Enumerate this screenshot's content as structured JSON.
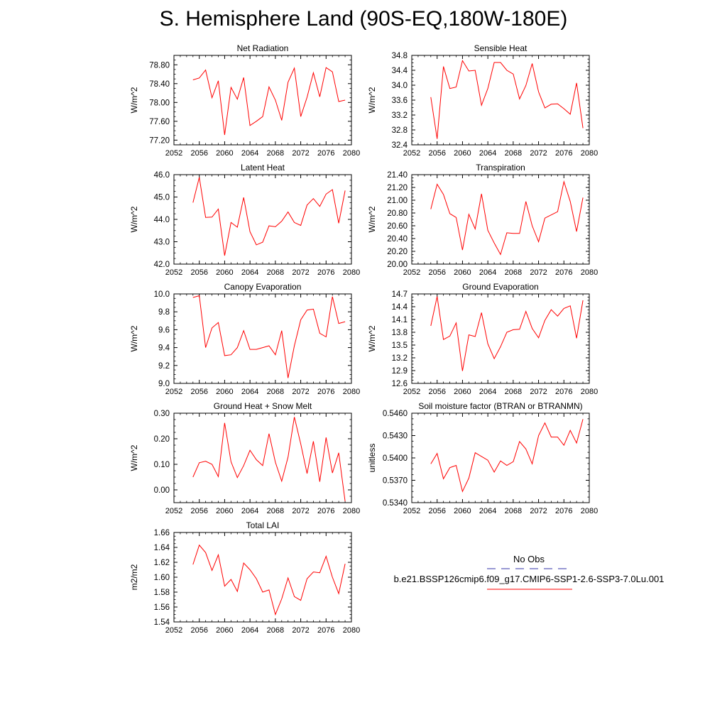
{
  "title": "S. Hemisphere Land (90S-EQ,180W-180E)",
  "legend": {
    "obs_label": "No Obs",
    "obs_color": "#3333aa",
    "case_label": "b.e21.BSSP126cmip6.f09_g17.CMIP6-SSP1-2.6-SSP3-7.0Lu.001",
    "case_color": "#ff0000"
  },
  "chart_data": [
    {
      "type": "line",
      "title": "Net Radiation",
      "ylabel": "W/m^2",
      "xlim": [
        2052,
        2080
      ],
      "ylim": [
        77.1,
        79.0
      ],
      "xticks": [
        "2052",
        "2056",
        "2060",
        "2064",
        "2068",
        "2072",
        "2076",
        "2080"
      ],
      "yticks": [
        "77.20",
        "77.60",
        "78.00",
        "78.40",
        "78.80"
      ],
      "x": [
        2055,
        2056,
        2057,
        2058,
        2059,
        2060,
        2061,
        2062,
        2063,
        2064,
        2065,
        2066,
        2067,
        2068,
        2069,
        2070,
        2071,
        2072,
        2073,
        2074,
        2075,
        2076,
        2077,
        2078,
        2079
      ],
      "series": [
        {
          "values": [
            78.48,
            78.52,
            78.69,
            78.1,
            78.46,
            77.31,
            78.32,
            78.07,
            78.53,
            77.51,
            77.6,
            77.7,
            78.33,
            78.05,
            77.62,
            78.43,
            78.73,
            77.7,
            78.11,
            78.63,
            78.12,
            78.74,
            78.65,
            78.02,
            78.05
          ],
          "color": "#ff0000"
        }
      ]
    },
    {
      "type": "line",
      "title": "Sensible Heat",
      "ylabel": "W/m^2",
      "xlim": [
        2052,
        2080
      ],
      "ylim": [
        32.4,
        34.8
      ],
      "xticks": [
        "2052",
        "2056",
        "2060",
        "2064",
        "2068",
        "2072",
        "2076",
        "2080"
      ],
      "yticks": [
        "32.4",
        "32.8",
        "33.2",
        "33.6",
        "34.0",
        "34.4",
        "34.8"
      ],
      "x": [
        2055,
        2056,
        2057,
        2058,
        2059,
        2060,
        2061,
        2062,
        2063,
        2064,
        2065,
        2066,
        2067,
        2068,
        2069,
        2070,
        2071,
        2072,
        2073,
        2074,
        2075,
        2076,
        2077,
        2078,
        2079
      ],
      "series": [
        {
          "values": [
            33.68,
            32.56,
            34.5,
            33.91,
            33.95,
            34.66,
            34.38,
            34.4,
            33.46,
            33.91,
            34.61,
            34.61,
            34.4,
            34.3,
            33.63,
            33.99,
            34.58,
            33.82,
            33.39,
            33.49,
            33.5,
            33.37,
            33.22,
            34.06,
            32.85
          ],
          "color": "#ff0000"
        }
      ]
    },
    {
      "type": "line",
      "title": "Latent Heat",
      "ylabel": "W/m^2",
      "xlim": [
        2052,
        2080
      ],
      "ylim": [
        42.0,
        46.0
      ],
      "xticks": [
        "2052",
        "2056",
        "2060",
        "2064",
        "2068",
        "2072",
        "2076",
        "2080"
      ],
      "yticks": [
        "42.0",
        "43.0",
        "44.0",
        "45.0",
        "46.0"
      ],
      "x": [
        2055,
        2056,
        2057,
        2058,
        2059,
        2060,
        2061,
        2062,
        2063,
        2064,
        2065,
        2066,
        2067,
        2068,
        2069,
        2070,
        2071,
        2072,
        2073,
        2074,
        2075,
        2076,
        2077,
        2078,
        2079
      ],
      "series": [
        {
          "values": [
            44.75,
            45.88,
            44.09,
            44.1,
            44.46,
            42.38,
            43.86,
            43.65,
            44.98,
            43.45,
            42.86,
            42.98,
            43.71,
            43.67,
            43.92,
            44.33,
            43.86,
            43.73,
            44.64,
            44.93,
            44.58,
            45.13,
            45.33,
            43.83,
            45.29
          ],
          "color": "#ff0000"
        }
      ]
    },
    {
      "type": "line",
      "title": "Transpiration",
      "ylabel": "W/m^2",
      "xlim": [
        2052,
        2080
      ],
      "ylim": [
        20.0,
        21.4
      ],
      "xticks": [
        "2052",
        "2056",
        "2060",
        "2064",
        "2068",
        "2072",
        "2076",
        "2080"
      ],
      "yticks": [
        "20.00",
        "20.20",
        "20.40",
        "20.60",
        "20.80",
        "21.00",
        "21.20",
        "21.40"
      ],
      "x": [
        2055,
        2056,
        2057,
        2058,
        2059,
        2060,
        2061,
        2062,
        2063,
        2064,
        2065,
        2066,
        2067,
        2068,
        2069,
        2070,
        2071,
        2072,
        2073,
        2074,
        2075,
        2076,
        2077,
        2078,
        2079
      ],
      "series": [
        {
          "values": [
            20.86,
            21.25,
            21.09,
            20.79,
            20.73,
            20.22,
            20.78,
            20.55,
            21.1,
            20.53,
            20.33,
            20.15,
            20.49,
            20.48,
            20.48,
            20.98,
            20.6,
            20.35,
            20.72,
            20.77,
            20.82,
            21.29,
            20.98,
            20.51,
            21.04
          ],
          "color": "#ff0000"
        }
      ]
    },
    {
      "type": "line",
      "title": "Canopy Evaporation",
      "ylabel": "W/m^2",
      "xlim": [
        2052,
        2080
      ],
      "ylim": [
        9.0,
        10.0
      ],
      "xticks": [
        "2052",
        "2056",
        "2060",
        "2064",
        "2068",
        "2072",
        "2076",
        "2080"
      ],
      "yticks": [
        "9.0",
        "9.2",
        "9.4",
        "9.6",
        "9.8",
        "10.0"
      ],
      "x": [
        2055,
        2056,
        2057,
        2058,
        2059,
        2060,
        2061,
        2062,
        2063,
        2064,
        2065,
        2066,
        2067,
        2068,
        2069,
        2070,
        2071,
        2072,
        2073,
        2074,
        2075,
        2076,
        2077,
        2078,
        2079
      ],
      "series": [
        {
          "values": [
            9.96,
            9.98,
            9.4,
            9.62,
            9.68,
            9.31,
            9.32,
            9.4,
            9.59,
            9.38,
            9.38,
            9.4,
            9.42,
            9.32,
            9.59,
            9.06,
            9.42,
            9.71,
            9.82,
            9.83,
            9.56,
            9.52,
            9.97,
            9.67,
            9.69
          ],
          "color": "#ff0000"
        }
      ]
    },
    {
      "type": "line",
      "title": "Ground Evaporation",
      "ylabel": "W/m^2",
      "xlim": [
        2052,
        2080
      ],
      "ylim": [
        12.6,
        14.7
      ],
      "xticks": [
        "2052",
        "2056",
        "2060",
        "2064",
        "2068",
        "2072",
        "2076",
        "2080"
      ],
      "yticks": [
        "12.6",
        "12.9",
        "13.2",
        "13.5",
        "13.8",
        "14.1",
        "14.4",
        "14.7"
      ],
      "x": [
        2055,
        2056,
        2057,
        2058,
        2059,
        2060,
        2061,
        2062,
        2063,
        2064,
        2065,
        2066,
        2067,
        2068,
        2069,
        2070,
        2071,
        2072,
        2073,
        2074,
        2075,
        2076,
        2077,
        2078,
        2079
      ],
      "series": [
        {
          "values": [
            13.95,
            14.64,
            13.63,
            13.71,
            14.02,
            12.89,
            13.74,
            13.7,
            14.26,
            13.53,
            13.18,
            13.46,
            13.8,
            13.86,
            13.87,
            14.29,
            13.89,
            13.67,
            14.08,
            14.33,
            14.18,
            14.36,
            14.42,
            13.66,
            14.55
          ],
          "color": "#ff0000"
        }
      ]
    },
    {
      "type": "line",
      "title": "Ground Heat + Snow Melt",
      "ylabel": "W/m^2",
      "xlim": [
        2052,
        2080
      ],
      "ylim": [
        -0.05,
        0.3
      ],
      "xticks": [
        "2052",
        "2056",
        "2060",
        "2064",
        "2068",
        "2072",
        "2076",
        "2080"
      ],
      "yticks": [
        "0.00",
        "0.10",
        "0.20",
        "0.30"
      ],
      "x": [
        2055,
        2056,
        2057,
        2058,
        2059,
        2060,
        2061,
        2062,
        2063,
        2064,
        2065,
        2066,
        2067,
        2068,
        2069,
        2070,
        2071,
        2072,
        2073,
        2074,
        2075,
        2076,
        2077,
        2078,
        2079
      ],
      "series": [
        {
          "values": [
            0.05,
            0.106,
            0.112,
            0.1,
            0.052,
            0.262,
            0.11,
            0.048,
            0.095,
            0.155,
            0.118,
            0.095,
            0.22,
            0.108,
            0.034,
            0.128,
            0.285,
            0.18,
            0.064,
            0.19,
            0.032,
            0.205,
            0.066,
            0.145,
            -0.045
          ],
          "color": "#ff0000"
        }
      ]
    },
    {
      "type": "line",
      "title": "Soil moisture factor (BTRAN or BTRANMN)",
      "ylabel": "unitless",
      "xlim": [
        2052,
        2080
      ],
      "ylim": [
        0.534,
        0.546
      ],
      "xticks": [
        "2052",
        "2056",
        "2060",
        "2064",
        "2068",
        "2072",
        "2076",
        "2080"
      ],
      "yticks": [
        "0.5340",
        "0.5370",
        "0.5400",
        "0.5430",
        "0.5460"
      ],
      "x": [
        2055,
        2056,
        2057,
        2058,
        2059,
        2060,
        2061,
        2062,
        2063,
        2064,
        2065,
        2066,
        2067,
        2068,
        2069,
        2070,
        2071,
        2072,
        2073,
        2074,
        2075,
        2076,
        2077,
        2078,
        2079
      ],
      "series": [
        {
          "values": [
            0.5392,
            0.5406,
            0.5372,
            0.5387,
            0.539,
            0.5355,
            0.5373,
            0.5407,
            0.5402,
            0.5397,
            0.5381,
            0.5396,
            0.539,
            0.5395,
            0.5422,
            0.5412,
            0.5392,
            0.543,
            0.5447,
            0.5428,
            0.5428,
            0.5417,
            0.5437,
            0.542,
            0.5452
          ],
          "color": "#ff0000"
        }
      ]
    },
    {
      "type": "line",
      "title": "Total LAI",
      "ylabel": "m2/m2",
      "xlim": [
        2052,
        2080
      ],
      "ylim": [
        1.54,
        1.66
      ],
      "xticks": [
        "2052",
        "2056",
        "2060",
        "2064",
        "2068",
        "2072",
        "2076",
        "2080"
      ],
      "yticks": [
        "1.54",
        "1.56",
        "1.58",
        "1.60",
        "1.62",
        "1.64",
        "1.66"
      ],
      "x": [
        2055,
        2056,
        2057,
        2058,
        2059,
        2060,
        2061,
        2062,
        2063,
        2064,
        2065,
        2066,
        2067,
        2068,
        2069,
        2070,
        2071,
        2072,
        2073,
        2074,
        2075,
        2076,
        2077,
        2078,
        2079
      ],
      "series": [
        {
          "values": [
            1.617,
            1.643,
            1.633,
            1.609,
            1.63,
            1.588,
            1.597,
            1.581,
            1.619,
            1.61,
            1.598,
            1.58,
            1.583,
            1.55,
            1.571,
            1.599,
            1.574,
            1.569,
            1.598,
            1.607,
            1.606,
            1.628,
            1.6,
            1.578,
            1.618
          ],
          "color": "#ff0000"
        }
      ]
    }
  ]
}
